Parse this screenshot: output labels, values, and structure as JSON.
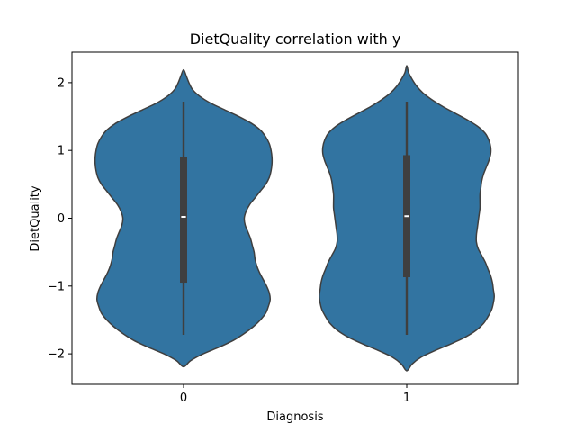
{
  "chart_data": {
    "type": "violin",
    "title": "DietQuality correlation with y",
    "xlabel": "Diagnosis",
    "ylabel": "DietQuality",
    "categories": [
      "0",
      "1"
    ],
    "ylim": [
      -2.45,
      2.45
    ],
    "yticks": [
      -2,
      -1,
      0,
      1,
      2
    ],
    "ytick_labels": [
      "−2",
      "−1",
      "0",
      "1",
      "2"
    ],
    "grid": false,
    "color": "#3274a1",
    "edge_color": "#3f3f3f",
    "violins": [
      {
        "category": "0",
        "median": 0.02,
        "q1": -0.95,
        "q3": 0.9,
        "whisker_low": -1.72,
        "whisker_high": 1.72,
        "profile": [
          [
            -2.19,
            0.0
          ],
          [
            -2.1,
            0.08
          ],
          [
            -2.0,
            0.22
          ],
          [
            -1.9,
            0.4
          ],
          [
            -1.8,
            0.56
          ],
          [
            -1.7,
            0.68
          ],
          [
            -1.6,
            0.78
          ],
          [
            -1.5,
            0.86
          ],
          [
            -1.4,
            0.92
          ],
          [
            -1.3,
            0.95
          ],
          [
            -1.2,
            0.97
          ],
          [
            -1.1,
            0.96
          ],
          [
            -1.0,
            0.93
          ],
          [
            -0.9,
            0.89
          ],
          [
            -0.8,
            0.85
          ],
          [
            -0.7,
            0.82
          ],
          [
            -0.6,
            0.8
          ],
          [
            -0.5,
            0.79
          ],
          [
            -0.4,
            0.77
          ],
          [
            -0.3,
            0.75
          ],
          [
            -0.2,
            0.72
          ],
          [
            -0.1,
            0.69
          ],
          [
            0.0,
            0.68
          ],
          [
            0.1,
            0.7
          ],
          [
            0.2,
            0.74
          ],
          [
            0.3,
            0.8
          ],
          [
            0.4,
            0.86
          ],
          [
            0.5,
            0.92
          ],
          [
            0.6,
            0.96
          ],
          [
            0.7,
            0.98
          ],
          [
            0.8,
            0.99
          ],
          [
            0.9,
            0.99
          ],
          [
            1.0,
            0.98
          ],
          [
            1.1,
            0.96
          ],
          [
            1.2,
            0.92
          ],
          [
            1.3,
            0.86
          ],
          [
            1.4,
            0.76
          ],
          [
            1.5,
            0.62
          ],
          [
            1.6,
            0.46
          ],
          [
            1.7,
            0.3
          ],
          [
            1.8,
            0.18
          ],
          [
            1.9,
            0.1
          ],
          [
            2.0,
            0.06
          ],
          [
            2.1,
            0.03
          ],
          [
            2.19,
            0.0
          ]
        ]
      },
      {
        "category": "1",
        "median": 0.03,
        "q1": -0.87,
        "q3": 0.93,
        "whisker_low": -1.72,
        "whisker_high": 1.72,
        "profile": [
          [
            -2.25,
            0.0
          ],
          [
            -2.15,
            0.06
          ],
          [
            -2.05,
            0.16
          ],
          [
            -1.95,
            0.32
          ],
          [
            -1.85,
            0.5
          ],
          [
            -1.75,
            0.66
          ],
          [
            -1.65,
            0.78
          ],
          [
            -1.55,
            0.86
          ],
          [
            -1.45,
            0.91
          ],
          [
            -1.35,
            0.95
          ],
          [
            -1.25,
            0.97
          ],
          [
            -1.15,
            0.98
          ],
          [
            -1.05,
            0.97
          ],
          [
            -0.95,
            0.96
          ],
          [
            -0.85,
            0.94
          ],
          [
            -0.75,
            0.91
          ],
          [
            -0.65,
            0.88
          ],
          [
            -0.55,
            0.84
          ],
          [
            -0.45,
            0.8
          ],
          [
            -0.35,
            0.78
          ],
          [
            -0.25,
            0.78
          ],
          [
            -0.15,
            0.79
          ],
          [
            -0.05,
            0.8
          ],
          [
            0.05,
            0.81
          ],
          [
            0.15,
            0.82
          ],
          [
            0.25,
            0.82
          ],
          [
            0.35,
            0.82
          ],
          [
            0.45,
            0.83
          ],
          [
            0.55,
            0.84
          ],
          [
            0.65,
            0.86
          ],
          [
            0.75,
            0.89
          ],
          [
            0.85,
            0.92
          ],
          [
            0.95,
            0.94
          ],
          [
            1.05,
            0.94
          ],
          [
            1.15,
            0.92
          ],
          [
            1.25,
            0.88
          ],
          [
            1.35,
            0.8
          ],
          [
            1.45,
            0.68
          ],
          [
            1.55,
            0.54
          ],
          [
            1.65,
            0.4
          ],
          [
            1.75,
            0.28
          ],
          [
            1.85,
            0.18
          ],
          [
            1.95,
            0.11
          ],
          [
            2.05,
            0.06
          ],
          [
            2.15,
            0.02
          ],
          [
            2.25,
            0.0
          ]
        ]
      }
    ]
  }
}
